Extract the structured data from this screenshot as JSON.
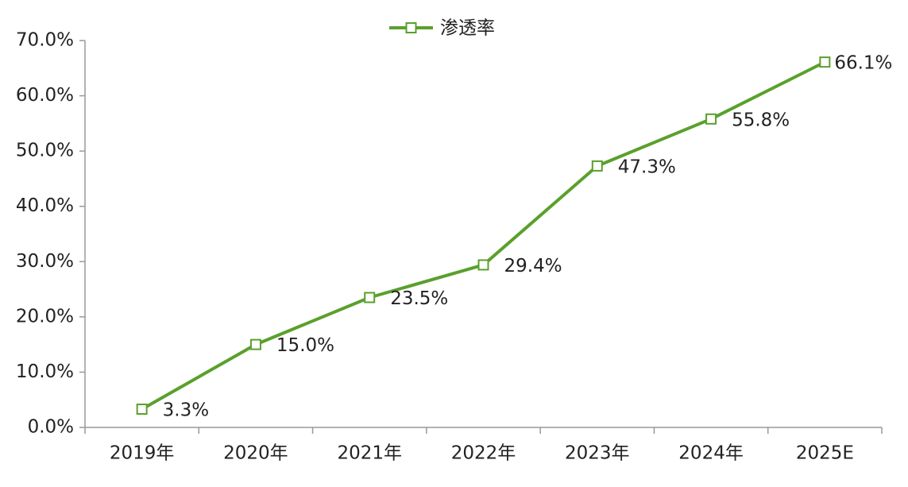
{
  "chart_data": {
    "type": "line",
    "categories": [
      "2019年",
      "2020年",
      "2021年",
      "2022年",
      "2023年",
      "2024年",
      "2025E"
    ],
    "series": [
      {
        "name": "渗透率",
        "color": "#5aa02c",
        "values": [
          3.3,
          15.0,
          23.5,
          29.4,
          47.3,
          55.8,
          66.1
        ],
        "value_labels": [
          "3.3%",
          "15.0%",
          "23.5%",
          "29.4%",
          "47.3%",
          "55.8%",
          "66.1%"
        ]
      }
    ],
    "ylim": [
      0,
      70
    ],
    "yticks": [
      {
        "value": 0,
        "label": "0.0%"
      },
      {
        "value": 10,
        "label": "10.0%"
      },
      {
        "value": 20,
        "label": "20.0%"
      },
      {
        "value": 30,
        "label": "30.0%"
      },
      {
        "value": 40,
        "label": "40.0%"
      },
      {
        "value": 50,
        "label": "50.0%"
      },
      {
        "value": 60,
        "label": "60.0%"
      },
      {
        "value": 70,
        "label": "70.0%"
      }
    ],
    "legend": "top"
  }
}
